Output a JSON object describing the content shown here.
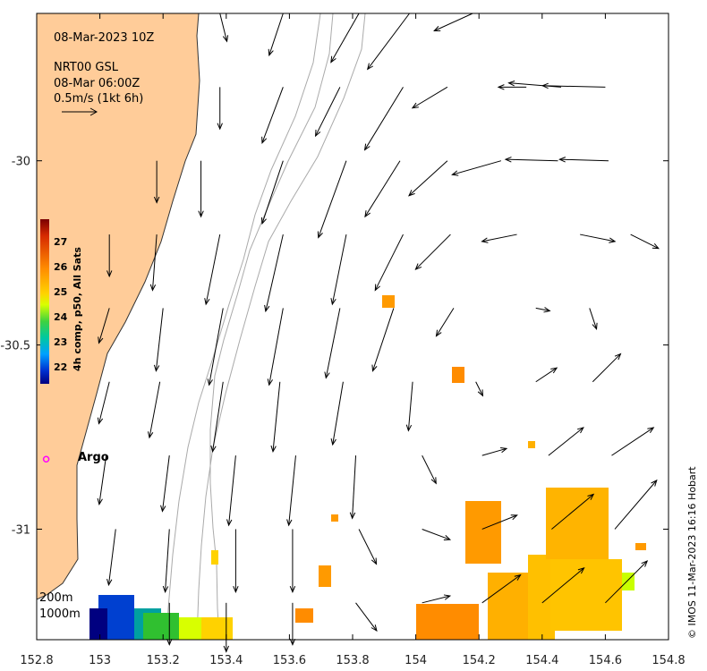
{
  "header": {
    "date": "08-Mar-2023 10Z",
    "source": "NRT00 GSL",
    "time": "08-Mar 06:00Z",
    "scale": "0.5m/s (1kt 6h)"
  },
  "legend": {
    "argo": "Argo",
    "depth_200": "200m",
    "depth_1000": "1000m",
    "colorbar_title": "4h comp, p50, All Sats",
    "colorbar_ticks": [
      "27",
      "26",
      "25",
      "24",
      "23",
      "22"
    ]
  },
  "credit": "© IMOS 11-Mar-2023 16:16 Hobart",
  "colors": {
    "land": "#ffcc99",
    "arrow": "#000000",
    "isobath": "#aaaaaa",
    "argo": "#ff00ff"
  },
  "chart_data": {
    "type": "quiver",
    "xlabel": "",
    "ylabel": "",
    "xlim": [
      152.8,
      154.8
    ],
    "ylim": [
      -31.3,
      -29.6
    ],
    "x_ticks": [
      "152.8",
      "153",
      "153.2",
      "153.4",
      "153.6",
      "153.8",
      "154",
      "154.2",
      "154.4",
      "154.6",
      "154.8"
    ],
    "y_ticks": [
      {
        "lat": -30.0,
        "label": "-30"
      },
      {
        "lat": -30.5,
        "label": "-30.5"
      },
      {
        "lat": -31.0,
        "label": "-31"
      }
    ],
    "argo": {
      "lon": 152.83,
      "lat": -30.81
    },
    "vectors": [
      [
        153.38,
        -29.6,
        0.1,
        -0.4
      ],
      [
        153.58,
        -29.6,
        -0.2,
        -0.6
      ],
      [
        153.82,
        -29.6,
        -0.4,
        -0.7
      ],
      [
        153.98,
        -29.6,
        -0.6,
        -0.8
      ],
      [
        154.18,
        -29.6,
        -0.55,
        -0.25
      ],
      [
        153.38,
        -29.8,
        0.0,
        -0.6
      ],
      [
        153.58,
        -29.8,
        -0.3,
        -0.8
      ],
      [
        153.76,
        -29.8,
        -0.35,
        -0.7
      ],
      [
        153.96,
        -29.8,
        -0.55,
        -0.9
      ],
      [
        154.1,
        -29.8,
        -0.5,
        -0.3
      ],
      [
        154.35,
        -29.8,
        -0.4,
        0.0
      ],
      [
        154.46,
        -29.8,
        -0.75,
        0.06
      ],
      [
        154.6,
        -29.8,
        -0.9,
        0.02
      ],
      [
        153.18,
        -30.0,
        0.0,
        -0.6
      ],
      [
        153.32,
        -30.0,
        0.0,
        -0.8
      ],
      [
        153.58,
        -30.0,
        -0.3,
        -0.9
      ],
      [
        153.78,
        -30.0,
        -0.4,
        -1.1
      ],
      [
        153.95,
        -30.0,
        -0.5,
        -0.8
      ],
      [
        154.1,
        -30.0,
        -0.55,
        -0.5
      ],
      [
        154.27,
        -30.0,
        -0.7,
        -0.2
      ],
      [
        154.45,
        -30.0,
        -0.75,
        0.02
      ],
      [
        154.61,
        -30.0,
        -0.7,
        0.02
      ],
      [
        153.03,
        -30.2,
        0.0,
        -0.6
      ],
      [
        153.18,
        -30.2,
        -0.06,
        -0.8
      ],
      [
        153.38,
        -30.2,
        -0.2,
        -1.0
      ],
      [
        153.58,
        -30.2,
        -0.25,
        -1.1
      ],
      [
        153.78,
        -30.2,
        -0.2,
        -1.0
      ],
      [
        153.96,
        -30.2,
        -0.4,
        -0.8
      ],
      [
        154.11,
        -30.2,
        -0.5,
        -0.5
      ],
      [
        154.32,
        -30.2,
        -0.5,
        -0.1
      ],
      [
        154.52,
        -30.2,
        0.5,
        -0.1
      ],
      [
        154.68,
        -30.2,
        0.4,
        -0.2
      ],
      [
        153.03,
        -30.4,
        -0.15,
        -0.5
      ],
      [
        153.2,
        -30.4,
        -0.1,
        -0.9
      ],
      [
        153.39,
        -30.4,
        -0.2,
        -1.1
      ],
      [
        153.58,
        -30.4,
        -0.2,
        -1.1
      ],
      [
        153.76,
        -30.4,
        -0.2,
        -1.0
      ],
      [
        153.93,
        -30.4,
        -0.3,
        -0.9
      ],
      [
        154.12,
        -30.4,
        -0.25,
        -0.4
      ],
      [
        154.38,
        -30.4,
        0.2,
        -0.04
      ],
      [
        154.55,
        -30.4,
        0.1,
        -0.3
      ],
      [
        153.03,
        -30.6,
        -0.15,
        -0.6
      ],
      [
        153.19,
        -30.6,
        -0.15,
        -0.8
      ],
      [
        153.39,
        -30.6,
        -0.15,
        -1.0
      ],
      [
        153.57,
        -30.6,
        -0.1,
        -1.0
      ],
      [
        153.77,
        -30.6,
        -0.15,
        -0.9
      ],
      [
        153.99,
        -30.6,
        -0.06,
        -0.7
      ],
      [
        154.19,
        -30.6,
        0.1,
        -0.2
      ],
      [
        154.38,
        -30.6,
        0.3,
        0.2
      ],
      [
        154.56,
        -30.6,
        0.4,
        0.4
      ],
      [
        153.02,
        -30.8,
        -0.1,
        -0.7
      ],
      [
        153.22,
        -30.8,
        -0.1,
        -0.8
      ],
      [
        153.43,
        -30.8,
        -0.1,
        -1.0
      ],
      [
        153.62,
        -30.8,
        -0.1,
        -1.0
      ],
      [
        153.81,
        -30.8,
        -0.05,
        -0.9
      ],
      [
        154.02,
        -30.8,
        0.2,
        -0.4
      ],
      [
        154.21,
        -30.8,
        0.35,
        0.1
      ],
      [
        154.42,
        -30.8,
        0.5,
        0.4
      ],
      [
        154.62,
        -30.8,
        0.6,
        0.4
      ],
      [
        153.05,
        -31.0,
        -0.1,
        -0.8
      ],
      [
        153.22,
        -31.0,
        -0.06,
        -0.9
      ],
      [
        153.43,
        -31.0,
        0.0,
        -0.9
      ],
      [
        153.61,
        -31.0,
        0.0,
        -0.9
      ],
      [
        153.82,
        -31.0,
        0.25,
        -0.5
      ],
      [
        154.02,
        -31.0,
        0.4,
        -0.15
      ],
      [
        154.21,
        -31.0,
        0.5,
        0.2
      ],
      [
        154.43,
        -31.0,
        0.6,
        0.5
      ],
      [
        154.63,
        -31.0,
        0.6,
        0.7
      ],
      [
        153.22,
        -31.2,
        0.0,
        -0.6
      ],
      [
        153.4,
        -31.2,
        0.0,
        -0.7
      ],
      [
        153.61,
        -31.2,
        0.0,
        -0.6
      ],
      [
        153.81,
        -31.2,
        0.3,
        -0.4
      ],
      [
        154.02,
        -31.2,
        0.4,
        0.1
      ],
      [
        154.21,
        -31.2,
        0.55,
        0.4
      ],
      [
        154.4,
        -31.2,
        0.6,
        0.5
      ],
      [
        154.6,
        -31.2,
        0.6,
        0.6
      ]
    ]
  }
}
